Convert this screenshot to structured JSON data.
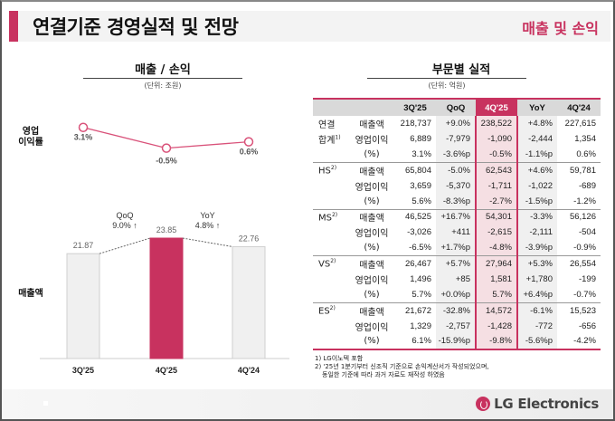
{
  "header": {
    "title": "연결기준 경영실적 및 전망",
    "section": "매출 및 손익"
  },
  "left": {
    "title": "매출 / 손익",
    "unit": "(단위: 조원)",
    "margin_label_line1": "영업",
    "margin_label_line2": "이익률",
    "sales_label": "매출액"
  },
  "chart_data": [
    {
      "type": "line",
      "title": "영업이익률",
      "categories": [
        "3Q'25",
        "4Q'25",
        "4Q'24"
      ],
      "values": [
        3.1,
        -0.5,
        0.6
      ],
      "labels": [
        "3.1%",
        "-0.5%",
        "0.6%"
      ],
      "unit": "%",
      "color": "#d9527a"
    },
    {
      "type": "bar",
      "title": "매출액",
      "categories": [
        "3Q'25",
        "4Q'25",
        "4Q'24"
      ],
      "values": [
        21.87,
        23.85,
        22.76
      ],
      "labels": [
        "21.87",
        "23.85",
        "22.76"
      ],
      "unit": "조원",
      "highlight_index": 1,
      "colors": {
        "normal": "#f0f0f0",
        "highlight": "#c8325f"
      },
      "annotations": [
        {
          "label": "QoQ",
          "value": "9.0% ↑",
          "from": 0,
          "to": 1
        },
        {
          "label": "YoY",
          "value": "4.8% ↑",
          "from": 1,
          "to": 2
        }
      ]
    }
  ],
  "right": {
    "title": "부문별 실적",
    "unit": "(단위: 억원)",
    "columns": [
      "3Q'25",
      "QoQ",
      "4Q'25",
      "YoY",
      "4Q'24"
    ],
    "groups": [
      {
        "name": "연결",
        "name2": "합계",
        "sup": "1)",
        "rows": [
          {
            "metric": "매출액",
            "values": [
              "218,737",
              "+9.0%",
              "238,522",
              "+4.8%",
              "227,615"
            ]
          },
          {
            "metric": "영업이익",
            "values": [
              "6,889",
              "-7,979",
              "-1,090",
              "-2,444",
              "1,354"
            ]
          },
          {
            "metric": "(%)",
            "values": [
              "3.1%",
              "-3.6%p",
              "-0.5%",
              "-1.1%p",
              "0.6%"
            ]
          }
        ]
      },
      {
        "name": "HS",
        "sup": "2)",
        "rows": [
          {
            "metric": "매출액",
            "values": [
              "65,804",
              "-5.0%",
              "62,543",
              "+4.6%",
              "59,781"
            ]
          },
          {
            "metric": "영업이익",
            "values": [
              "3,659",
              "-5,370",
              "-1,711",
              "-1,022",
              "-689"
            ]
          },
          {
            "metric": "(%)",
            "values": [
              "5.6%",
              "-8.3%p",
              "-2.7%",
              "-1.5%p",
              "-1.2%"
            ]
          }
        ]
      },
      {
        "name": "MS",
        "sup": "2)",
        "rows": [
          {
            "metric": "매출액",
            "values": [
              "46,525",
              "+16.7%",
              "54,301",
              "-3.3%",
              "56,126"
            ]
          },
          {
            "metric": "영업이익",
            "values": [
              "-3,026",
              "+411",
              "-2,615",
              "-2,111",
              "-504"
            ]
          },
          {
            "metric": "(%)",
            "values": [
              "-6.5%",
              "+1.7%p",
              "-4.8%",
              "-3.9%p",
              "-0.9%"
            ]
          }
        ]
      },
      {
        "name": "VS",
        "sup": "2)",
        "rows": [
          {
            "metric": "매출액",
            "values": [
              "26,467",
              "+5.7%",
              "27,964",
              "+5.3%",
              "26,554"
            ]
          },
          {
            "metric": "영업이익",
            "values": [
              "1,496",
              "+85",
              "1,581",
              "+1,780",
              "-199"
            ]
          },
          {
            "metric": "(%)",
            "values": [
              "5.7%",
              "+0.0%p",
              "5.7%",
              "+6.4%p",
              "-0.7%"
            ]
          }
        ]
      },
      {
        "name": "ES",
        "sup": "2)",
        "rows": [
          {
            "metric": "매출액",
            "values": [
              "21,672",
              "-32.8%",
              "14,572",
              "-6.1%",
              "15,523"
            ]
          },
          {
            "metric": "영업이익",
            "values": [
              "1,329",
              "-2,757",
              "-1,428",
              "-772",
              "-656"
            ]
          },
          {
            "metric": "(%)",
            "values": [
              "6.1%",
              "-15.9%p",
              "-9.8%",
              "-5.6%p",
              "-4.2%"
            ]
          }
        ]
      }
    ],
    "footnotes": [
      "1) LG이노텍 포함",
      "2) '25년 1분기부터 신조직 기준으로 손익계산서가 작성되었으며,",
      "동일한 기준에 따라 과거 자료도 재작성 하였음"
    ]
  },
  "brand": {
    "name": "LG Electronics",
    "accent": "#c8325f"
  }
}
